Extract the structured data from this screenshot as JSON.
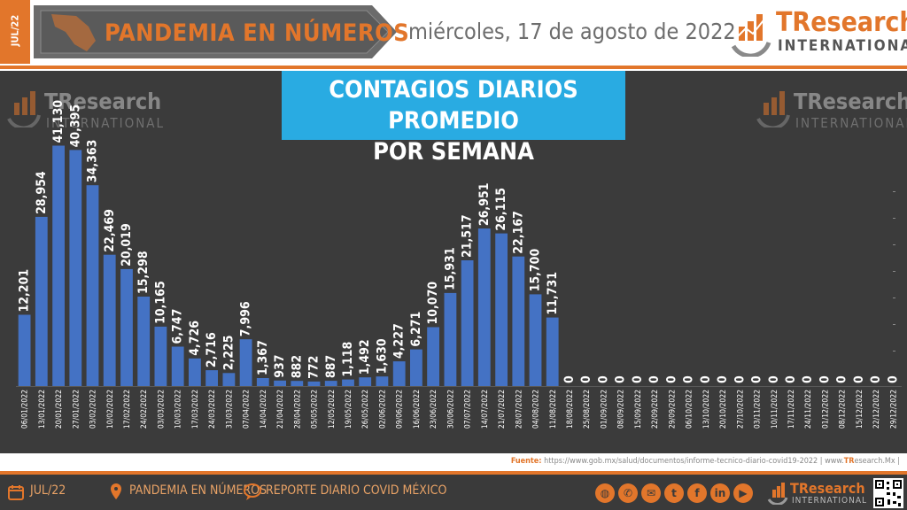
{
  "header": {
    "edition": "JUL/22",
    "title": "PANDEMIA EN NÚMEROS",
    "date": "miércoles, 17 de agosto de 2022",
    "brand_name": "TResearch",
    "brand_sub": "INTERNATIONAL"
  },
  "colors": {
    "accent": "#e2762b",
    "bar": "#4472c4",
    "panel": "#3b3b3b",
    "title_box": "#29abe2"
  },
  "chart_data": {
    "type": "bar",
    "title": "CONTAGIOS DIARIOS PROMEDIO POR SEMANA",
    "title_lines": [
      "CONTAGIOS DIARIOS PROMEDIO",
      "POR SEMANA"
    ],
    "categories": [
      "06/01/2022",
      "13/01/2022",
      "20/01/2022",
      "27/01/2022",
      "03/02/2022",
      "10/02/2022",
      "17/02/2022",
      "24/02/2022",
      "03/03/2022",
      "10/03/2022",
      "17/03/2022",
      "24/03/2022",
      "31/03/2022",
      "07/04/2022",
      "14/04/2022",
      "21/04/2022",
      "28/04/2022",
      "05/05/2022",
      "12/05/2022",
      "19/05/2022",
      "26/05/2022",
      "02/06/2022",
      "09/06/2022",
      "16/06/2022",
      "23/06/2022",
      "30/06/2022",
      "07/07/2022",
      "14/07/2022",
      "21/07/2022",
      "28/07/2022",
      "04/08/2022",
      "11/08/2022",
      "18/08/2022",
      "25/08/2022",
      "01/09/2022",
      "08/09/2022",
      "15/09/2022",
      "22/09/2022",
      "29/09/2022",
      "06/10/2022",
      "13/10/2022",
      "20/10/2022",
      "27/10/2022",
      "03/11/2022",
      "10/11/2022",
      "17/11/2022",
      "24/11/2022",
      "01/12/2022",
      "08/12/2022",
      "15/12/2022",
      "22/12/2022",
      "29/12/2022"
    ],
    "values": [
      12201,
      28954,
      41130,
      40395,
      34363,
      22469,
      20019,
      15298,
      10165,
      6747,
      4726,
      2716,
      2225,
      7996,
      1367,
      937,
      882,
      772,
      887,
      1118,
      1492,
      1630,
      4227,
      6271,
      10070,
      15931,
      21517,
      26951,
      26115,
      22167,
      15700,
      11731,
      0,
      0,
      0,
      0,
      0,
      0,
      0,
      0,
      0,
      0,
      0,
      0,
      0,
      0,
      0,
      0,
      0,
      0,
      0,
      0
    ],
    "labels": [
      "12,201",
      "28,954",
      "41,130",
      "40,395",
      "34,363",
      "22,469",
      "20,019",
      "15,298",
      "10,165",
      "6,747",
      "4,726",
      "2,716",
      "2,225",
      "7,996",
      "1,367",
      "937",
      "882",
      "772",
      "887",
      "1,118",
      "1,492",
      "1,630",
      "4,227",
      "6,271",
      "10,070",
      "15,931",
      "21,517",
      "26,951",
      "26,115",
      "22,167",
      "15,700",
      "11,731",
      "0",
      "0",
      "0",
      "0",
      "0",
      "0",
      "0",
      "0",
      "0",
      "0",
      "0",
      "0",
      "0",
      "0",
      "0",
      "0",
      "0",
      "0",
      "0",
      "0"
    ],
    "xlabel": "",
    "ylabel": "",
    "ylim": [
      0,
      50000
    ],
    "grid": false,
    "legend": "none"
  },
  "source": {
    "label": "Fuente:",
    "url": "https://www.gob.mx/salud/documentos/informe-tecnico-diario-covid19-2022",
    "site_prefix": "www.",
    "site_brand": "TR",
    "site_suffix": "esearch.Mx"
  },
  "footer": {
    "edition": "JUL/22",
    "section": "PANDEMIA EN NÚMEROS",
    "report": "REPORTE DIARIO COVID MÉXICO",
    "social_icons": [
      "globe-icon",
      "whatsapp-icon",
      "email-icon",
      "twitter-icon",
      "facebook-icon",
      "linkedin-icon",
      "youtube-icon"
    ],
    "brand_name": "TResearch",
    "brand_sub": "INTERNATIONAL"
  }
}
